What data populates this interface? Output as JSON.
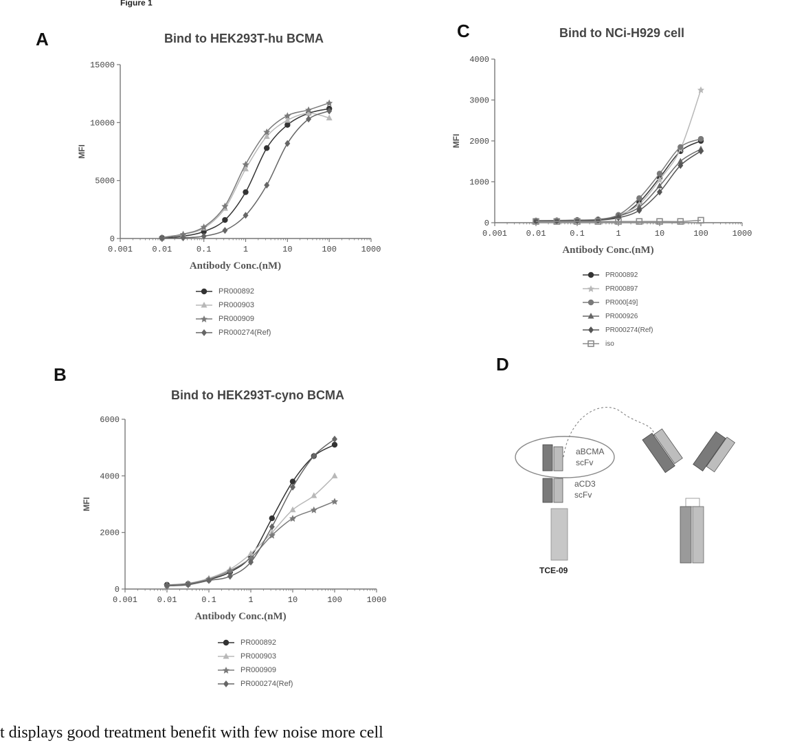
{
  "figure_label": "Figure 1",
  "caption": "t displays good treatment benefit with few noise more cell",
  "colors": {
    "s1": "#333333",
    "s2": "#b8b8b8",
    "s3": "#7a7a7a",
    "s4": "#666666",
    "s5": "#555555",
    "s6": "#8a8a8a"
  },
  "chart_data": [
    {
      "panel": "A",
      "type": "line",
      "title": "Bind to HEK293T-hu BCMA",
      "xlabel": "Antibody Conc.(nM)",
      "ylabel": "MFI",
      "xscale": "log",
      "xlim": [
        0.001,
        1000
      ],
      "ylim": [
        0,
        15000
      ],
      "xticks": [
        0.001,
        0.01,
        0.1,
        1,
        10,
        100,
        1000
      ],
      "xtick_labels": [
        "0.001",
        "0.01",
        "0.1",
        "1",
        "10",
        "100",
        "1000"
      ],
      "yticks": [
        0,
        5000,
        10000,
        15000
      ],
      "ytick_labels": [
        "0",
        "5000",
        "10000",
        "15000"
      ],
      "x": [
        0.01,
        0.032,
        0.1,
        0.32,
        1,
        3.2,
        10,
        32,
        100
      ],
      "series": [
        {
          "name": "PR000892",
          "values": [
            50,
            200,
            600,
            1600,
            4000,
            7800,
            9800,
            10800,
            11200
          ],
          "marker": "circle"
        },
        {
          "name": "PR000903",
          "values": [
            80,
            350,
            900,
            2600,
            6000,
            8800,
            10200,
            10800,
            10400
          ],
          "marker": "triangle"
        },
        {
          "name": "PR000909",
          "values": [
            90,
            380,
            1000,
            2800,
            6400,
            9200,
            10600,
            11100,
            11700
          ],
          "marker": "star"
        },
        {
          "name": "PR000274(Ref)",
          "values": [
            10,
            60,
            200,
            700,
            2000,
            4600,
            8200,
            10300,
            11000
          ],
          "marker": "diamond"
        }
      ]
    },
    {
      "panel": "B",
      "type": "line",
      "title": "Bind to HEK293T-cyno BCMA",
      "xlabel": "Antibody Conc.(nM)",
      "ylabel": "MFI",
      "xscale": "log",
      "xlim": [
        0.001,
        1000
      ],
      "ylim": [
        0,
        6000
      ],
      "xticks": [
        0.001,
        0.01,
        0.1,
        1,
        10,
        100,
        1000
      ],
      "xtick_labels": [
        "0.001",
        "0.01",
        "0.1",
        "1",
        "10",
        "100",
        "1000"
      ],
      "yticks": [
        0,
        2000,
        4000,
        6000
      ],
      "ytick_labels": [
        "0",
        "2000",
        "4000",
        "6000"
      ],
      "x": [
        0.01,
        0.032,
        0.1,
        0.32,
        1,
        3.2,
        10,
        32,
        100
      ],
      "series": [
        {
          "name": "PR000892",
          "values": [
            150,
            180,
            330,
            600,
            1150,
            2500,
            3800,
            4700,
            5100
          ],
          "marker": "circle"
        },
        {
          "name": "PR000903",
          "values": [
            150,
            200,
            380,
            700,
            1250,
            2000,
            2800,
            3300,
            4000
          ],
          "marker": "triangle"
        },
        {
          "name": "PR000909",
          "values": [
            140,
            190,
            350,
            650,
            1100,
            1900,
            2500,
            2800,
            3100
          ],
          "marker": "star"
        },
        {
          "name": "PR000274(Ref)",
          "values": [
            110,
            150,
            300,
            450,
            950,
            2200,
            3600,
            4700,
            5300
          ],
          "marker": "diamond"
        }
      ]
    },
    {
      "panel": "C",
      "type": "line",
      "title": "Bind to NCi-H929 cell",
      "xlabel": "Antibody Conc.(nM)",
      "ylabel": "MFI",
      "xscale": "log",
      "xlim": [
        0.001,
        1000
      ],
      "ylim": [
        0,
        4000
      ],
      "xticks": [
        0.001,
        0.01,
        0.1,
        1,
        10,
        100,
        1000
      ],
      "xtick_labels": [
        "0.001",
        "0.01",
        "0.1",
        "1",
        "10",
        "100",
        "1000"
      ],
      "yticks": [
        0,
        1000,
        2000,
        3000,
        4000
      ],
      "ytick_labels": [
        "0",
        "1000",
        "2000",
        "3000",
        "4000"
      ],
      "x": [
        0.01,
        0.032,
        0.1,
        0.32,
        1,
        3.2,
        10,
        32,
        100
      ],
      "series": [
        {
          "name": "PR000892",
          "values": [
            50,
            50,
            60,
            70,
            150,
            500,
            1100,
            1750,
            2000
          ],
          "marker": "circle"
        },
        {
          "name": "PR000897",
          "values": [
            50,
            55,
            60,
            80,
            180,
            450,
            1050,
            1800,
            3250
          ],
          "marker": "star"
        },
        {
          "name": "PR000[49]",
          "values": [
            50,
            55,
            65,
            80,
            190,
            600,
            1200,
            1850,
            2050
          ],
          "marker": "circle"
        },
        {
          "name": "PR000926",
          "values": [
            45,
            50,
            55,
            70,
            160,
            380,
            900,
            1500,
            1800
          ],
          "marker": "triangle"
        },
        {
          "name": "PR000274(Ref)",
          "values": [
            40,
            45,
            50,
            60,
            120,
            300,
            750,
            1400,
            1750
          ],
          "marker": "diamond"
        },
        {
          "name": "iso",
          "values": [
            30,
            30,
            30,
            30,
            30,
            30,
            30,
            30,
            60
          ],
          "marker": "square"
        }
      ]
    }
  ],
  "panel_d": {
    "letter": "D",
    "label_bcma": "aBCMA",
    "label_bcma_scfv": "scFv",
    "label_cd3": "aCD3",
    "label_cd3_scfv": "scFv",
    "construct_name": "TCE-09"
  }
}
